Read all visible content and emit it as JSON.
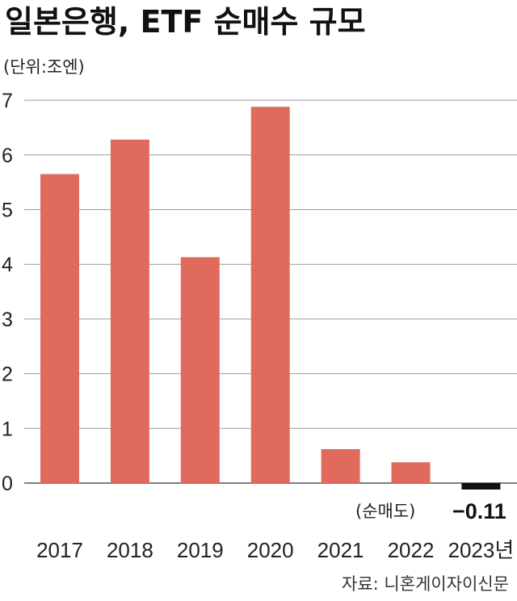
{
  "chart_data": {
    "type": "bar",
    "title": "일본은행, ETF 순매수 규모",
    "unit_label": "(단위:조엔)",
    "categories": [
      "2017",
      "2018",
      "2019",
      "2020",
      "2021",
      "2022",
      "2023년"
    ],
    "values": [
      5.65,
      6.28,
      4.13,
      6.88,
      0.62,
      0.38,
      -0.11
    ],
    "negative_note": "(순매도)",
    "negative_value_label": "−0.11",
    "ylim": [
      0,
      7
    ],
    "yticks": [
      "0",
      "1",
      "2",
      "3",
      "4",
      "5",
      "6",
      "7"
    ],
    "grid": true,
    "colors": {
      "positive": "#e06a5c",
      "negative": "#111111",
      "grid": "#9a9a9a"
    },
    "source": "자료: 니혼게이자이신문"
  }
}
